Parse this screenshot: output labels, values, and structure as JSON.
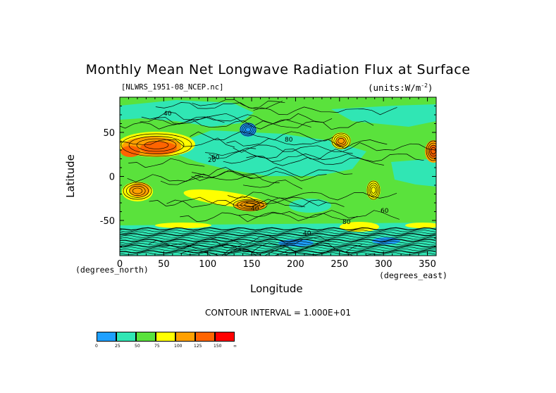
{
  "title": "Monthly Mean Net Longwave Radiation Flux at Surface",
  "file_label": "[NLWRS_1951-08_NCEP.nc]",
  "units_label": "(units:W/m",
  "units_exp": "-2",
  "units_close": ")",
  "axes": {
    "y_label": "Latitude",
    "x_label": "Longitude",
    "y_units": "(degrees_north)",
    "x_units": "(degrees_east)",
    "y_ticks": [
      "50",
      "0",
      "-50"
    ],
    "x_ticks": [
      "0",
      "50",
      "100",
      "150",
      "200",
      "250",
      "300",
      "350"
    ]
  },
  "contour_interval": "CONTOUR INTERVAL = 1.000E+01",
  "contour_labels": [
    "40",
    "60",
    "80",
    "40",
    "40",
    "80",
    "20",
    "60"
  ],
  "colors": {
    "c0": "#1ea0ff",
    "c25": "#30e6b4",
    "c50": "#5ae23c",
    "c75": "#ffff00",
    "c100": "#ffa000",
    "c125": "#ff6400",
    "c150": "#ff0000"
  },
  "legend": {
    "labels": [
      "0",
      "25",
      "50",
      "75",
      "100",
      "125",
      "150",
      "∞"
    ]
  }
}
